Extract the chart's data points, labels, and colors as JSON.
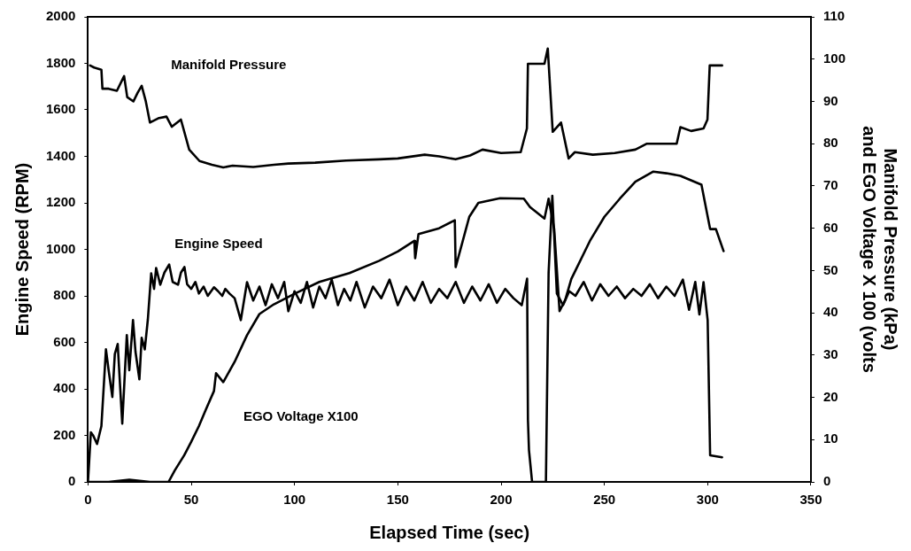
{
  "chart_data": {
    "type": "line",
    "xlabel": "Elapsed Time (sec)",
    "ylabel": "Engine Speed (RPM)",
    "y2label": "Manifold Pressure (kPa)\nand EGO Voltage X 100 (volts",
    "xlim": [
      0,
      350
    ],
    "xticks": [
      0,
      50,
      100,
      150,
      200,
      250,
      300,
      350
    ],
    "ylim": [
      0,
      2000
    ],
    "yticks": [
      0,
      200,
      400,
      600,
      800,
      1000,
      1200,
      1400,
      1600,
      1800,
      2000
    ],
    "y2lim": [
      0,
      110
    ],
    "y2ticks": [
      0,
      10,
      20,
      30,
      40,
      50,
      60,
      70,
      80,
      90,
      100,
      110
    ],
    "grid": false,
    "legend": false,
    "series": [
      {
        "name": "Manifold Pressure",
        "color": "#000000",
        "axis": "y2",
        "x": [
          1,
          3,
          6.5,
          7,
          10,
          14,
          17.5,
          19,
          22,
          24,
          26,
          28,
          30,
          34,
          38,
          40.6,
          45,
          49,
          54,
          60,
          65.5,
          70,
          80,
          90,
          97,
          110,
          125,
          141,
          150,
          163,
          170,
          178,
          185,
          191,
          200,
          209.5,
          212.5,
          213,
          221,
          222.6,
          225,
          229,
          232.7,
          235.7,
          244.4,
          255,
          265,
          270.6,
          285,
          286.8,
          292,
          298,
          299.9,
          301,
          307
        ],
        "values": [
          98.5,
          98,
          97.5,
          93,
          93,
          92.5,
          96,
          91,
          90,
          92,
          93.7,
          90,
          85,
          86,
          86.4,
          84,
          85.7,
          78.6,
          75.9,
          75,
          74.4,
          74.8,
          74.5,
          75,
          75.3,
          75.5,
          76,
          76.3,
          76.5,
          77.4,
          77,
          76.3,
          77.2,
          78.6,
          77.8,
          78,
          83.6,
          98.9,
          98.9,
          102.5,
          82.8,
          85,
          76.5,
          78,
          77.4,
          77.8,
          78.6,
          80,
          80,
          83.9,
          83,
          83.6,
          85.7,
          98.5,
          98.5
        ]
      },
      {
        "name": "Engine Speed",
        "color": "#000000",
        "x": [
          0,
          1.4,
          2.5,
          4.4,
          6.5,
          8.7,
          10,
          11.8,
          13,
          14.4,
          15.5,
          16.6,
          18.8,
          20,
          21.8,
          23,
          24.9,
          26,
          27.5,
          29,
          30.6,
          32,
          33,
          35,
          37,
          39.3,
          41,
          43.6,
          45,
          46.7,
          48,
          50,
          52,
          53.7,
          56,
          58,
          61,
          63,
          65,
          66.5,
          68.5,
          71,
          74,
          77,
          80,
          83,
          86,
          89,
          92,
          95,
          97,
          100,
          103,
          106,
          109,
          112,
          115,
          118,
          121,
          124,
          127,
          130,
          134,
          138,
          142,
          146,
          150,
          154,
          158,
          162,
          166,
          170,
          174,
          178,
          182,
          186,
          190,
          194,
          198,
          202,
          206,
          210,
          212.6,
          213,
          213.5,
          215,
          221.7,
          223,
          224.8,
          227,
          230,
          233,
          236,
          240,
          244,
          248,
          252,
          256,
          260,
          264,
          268,
          272,
          276,
          280,
          284,
          288,
          291,
          294,
          296,
          298,
          300,
          301.2,
          307
        ],
        "values": [
          0,
          213,
          200,
          163,
          240,
          570,
          480,
          365,
          550,
          593,
          420,
          251,
          631,
          480,
          696,
          560,
          441,
          620,
          570,
          700,
          897,
          830,
          920,
          848,
          900,
          935,
          860,
          848,
          900,
          924,
          850,
          830,
          860,
          810,
          840,
          800,
          837,
          820,
          800,
          830,
          810,
          790,
          696,
          859,
          780,
          840,
          760,
          850,
          790,
          860,
          734,
          820,
          770,
          860,
          750,
          840,
          790,
          870,
          760,
          830,
          780,
          860,
          750,
          840,
          790,
          870,
          760,
          840,
          780,
          860,
          770,
          830,
          790,
          860,
          770,
          840,
          780,
          850,
          770,
          830,
          790,
          760,
          874,
          266,
          137,
          0,
          0,
          900,
          1230,
          810,
          760,
          820,
          800,
          860,
          780,
          850,
          800,
          840,
          790,
          830,
          800,
          850,
          790,
          840,
          800,
          870,
          740,
          860,
          720,
          859,
          696,
          114,
          106
        ]
      },
      {
        "name": "EGO Voltage X100",
        "color": "#000000",
        "axis": "y2",
        "x": [
          0,
          10,
          20,
          30,
          39,
          42,
          46.6,
          50,
          53.7,
          57,
          61,
          62,
          65.5,
          71,
          77,
          83,
          90,
          100,
          112,
          126.6,
          141,
          150,
          158,
          158.4,
          160,
          170,
          177.6,
          178,
          184.6,
          189,
          199.5,
          211,
          214,
          221,
          223,
          225.7,
          228.3,
          231,
          234,
          236,
          243,
          250,
          257.5,
          265,
          273.7,
          280,
          286.8,
          297,
          301.2,
          304,
          307.7
        ],
        "values": [
          0,
          0,
          0.5,
          0,
          0,
          2.7,
          6.3,
          9.5,
          13.2,
          17,
          21.5,
          25.7,
          23.6,
          28.4,
          34.7,
          39.7,
          42,
          44.5,
          47.3,
          49.4,
          52.3,
          54.5,
          57,
          52.9,
          58.6,
          60,
          61.9,
          50.8,
          62.7,
          66,
          67.1,
          67,
          65,
          62.3,
          67,
          59.8,
          40.4,
          43,
          48,
          50,
          57,
          62.7,
          67,
          71,
          73.4,
          73,
          72.4,
          70.3,
          59.8,
          59.8,
          54.6
        ]
      }
    ]
  }
}
